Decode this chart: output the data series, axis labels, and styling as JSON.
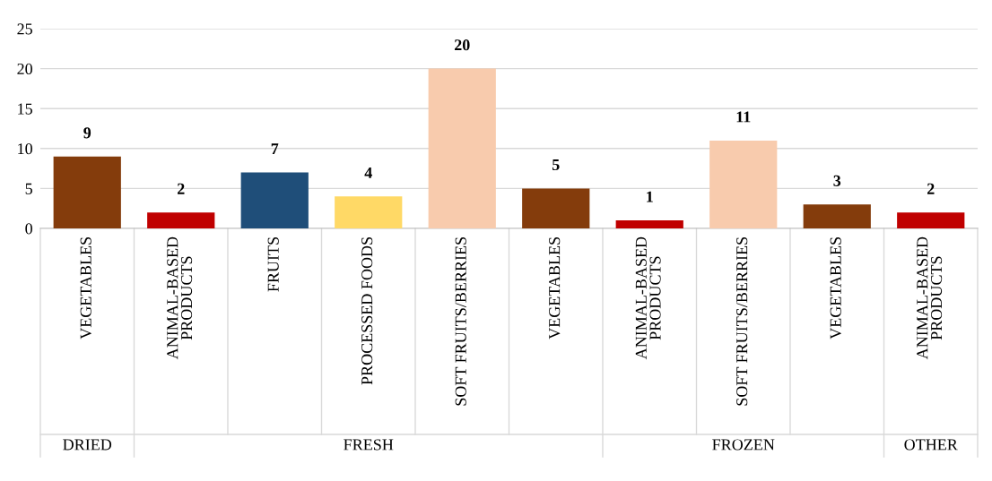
{
  "chart_data": {
    "type": "bar",
    "categories": [
      "VEGETABLES",
      "ANIMAL-BASED PRODUCTS",
      "FRUITS",
      "PROCESSED FOODS",
      "SOFT FRUITS/BERRIES",
      "VEGETABLES",
      "ANIMAL-BASED PRODUCTS",
      "SOFT FRUITS/BERRIES",
      "VEGETABLES",
      "ANIMAL-BASED PRODUCTS"
    ],
    "values": [
      9,
      2,
      7,
      4,
      20,
      5,
      1,
      11,
      3,
      2
    ],
    "colors": [
      "#843c0c",
      "#c00000",
      "#1f4e79",
      "#ffd966",
      "#f8cbad",
      "#843c0c",
      "#c00000",
      "#f8cbad",
      "#843c0c",
      "#c00000"
    ],
    "annotations": [
      "DRIED",
      "FRESH",
      "FROZEN",
      "OTHER"
    ],
    "ylim": [
      0,
      25
    ],
    "yticks": [
      0,
      5,
      10,
      15,
      20,
      25
    ],
    "grid": "y",
    "data_labels": true
  }
}
